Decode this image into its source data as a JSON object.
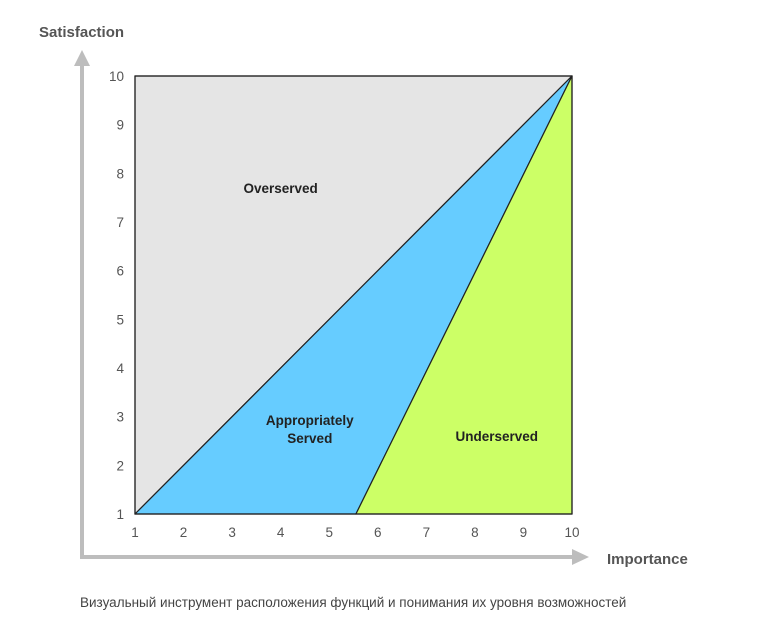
{
  "chart_data": {
    "type": "area",
    "xlabel": "Importance",
    "ylabel": "Satisfaction",
    "xlim": [
      1,
      10
    ],
    "ylim": [
      1,
      10
    ],
    "x_ticks": [
      "1",
      "2",
      "3",
      "4",
      "5",
      "6",
      "7",
      "8",
      "9",
      "10"
    ],
    "y_ticks": [
      "1",
      "2",
      "3",
      "4",
      "5",
      "6",
      "7",
      "8",
      "9",
      "10"
    ],
    "grid": false,
    "regions": [
      {
        "name": "Overserved",
        "label_lines": [
          "Overserved"
        ],
        "color": "#e5e5e5",
        "points": [
          [
            1,
            1
          ],
          [
            1,
            10
          ],
          [
            10,
            10
          ]
        ],
        "label_at": [
          4,
          7.7
        ]
      },
      {
        "name": "Appropriately Served",
        "label_lines": [
          "Appropriately",
          "Served"
        ],
        "color": "#66ccff",
        "points": [
          [
            1,
            1
          ],
          [
            10,
            10
          ],
          [
            5.55,
            1
          ]
        ],
        "label_at": [
          4.6,
          2.75
        ]
      },
      {
        "name": "Underserved",
        "label_lines": [
          "Underserved"
        ],
        "color": "#ccff66",
        "points": [
          [
            5.55,
            1
          ],
          [
            10,
            10
          ],
          [
            10,
            1
          ]
        ],
        "label_at": [
          8.45,
          2.6
        ]
      }
    ]
  },
  "caption": "Визуальный инструмент расположения функций и понимания их уровня возможностей"
}
